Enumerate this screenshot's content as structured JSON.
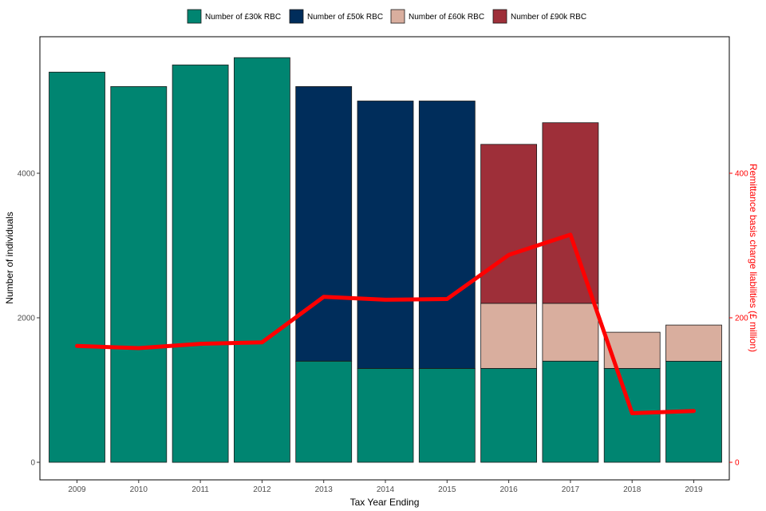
{
  "chart_data": {
    "type": "bar",
    "stacked": true,
    "categories": [
      "2009",
      "2010",
      "2011",
      "2012",
      "2013",
      "2014",
      "2015",
      "2016",
      "2017",
      "2018",
      "2019"
    ],
    "series": [
      {
        "name": "Number of £30k RBC",
        "color": "#008571",
        "values": [
          5400,
          5200,
          5500,
          5600,
          1400,
          1300,
          1300,
          1300,
          1400,
          1300,
          1400
        ]
      },
      {
        "name": "Number of £50k RBC",
        "color": "#002d5b",
        "values": [
          0,
          0,
          0,
          0,
          3800,
          3700,
          3700,
          0,
          0,
          0,
          0
        ]
      },
      {
        "name": "Number of £60k RBC",
        "color": "#d9ae9e",
        "values": [
          0,
          0,
          0,
          0,
          0,
          0,
          0,
          900,
          800,
          500,
          500
        ]
      },
      {
        "name": "Number of £90k RBC",
        "color": "#9e2f39",
        "values": [
          0,
          0,
          0,
          0,
          0,
          0,
          0,
          2200,
          2500,
          0,
          0
        ]
      }
    ],
    "line": {
      "color": "#ff0000",
      "axis": "right",
      "values": [
        161,
        158,
        164,
        166,
        229,
        225,
        226,
        287,
        315,
        68,
        71
      ]
    },
    "xlabel": "Tax Year Ending",
    "ylabel": "Number of individuals",
    "y2label": "Remittance basis charge liabilities (£ million)",
    "ylim": [
      0,
      5700
    ],
    "yticks": [
      0,
      2000,
      4000
    ],
    "y2lim": [
      0,
      570
    ],
    "y2ticks": [
      0,
      200,
      400
    ],
    "y2ticklabels": [
      "0",
      "200",
      "400"
    ],
    "grid": false,
    "legend_position": "top"
  }
}
